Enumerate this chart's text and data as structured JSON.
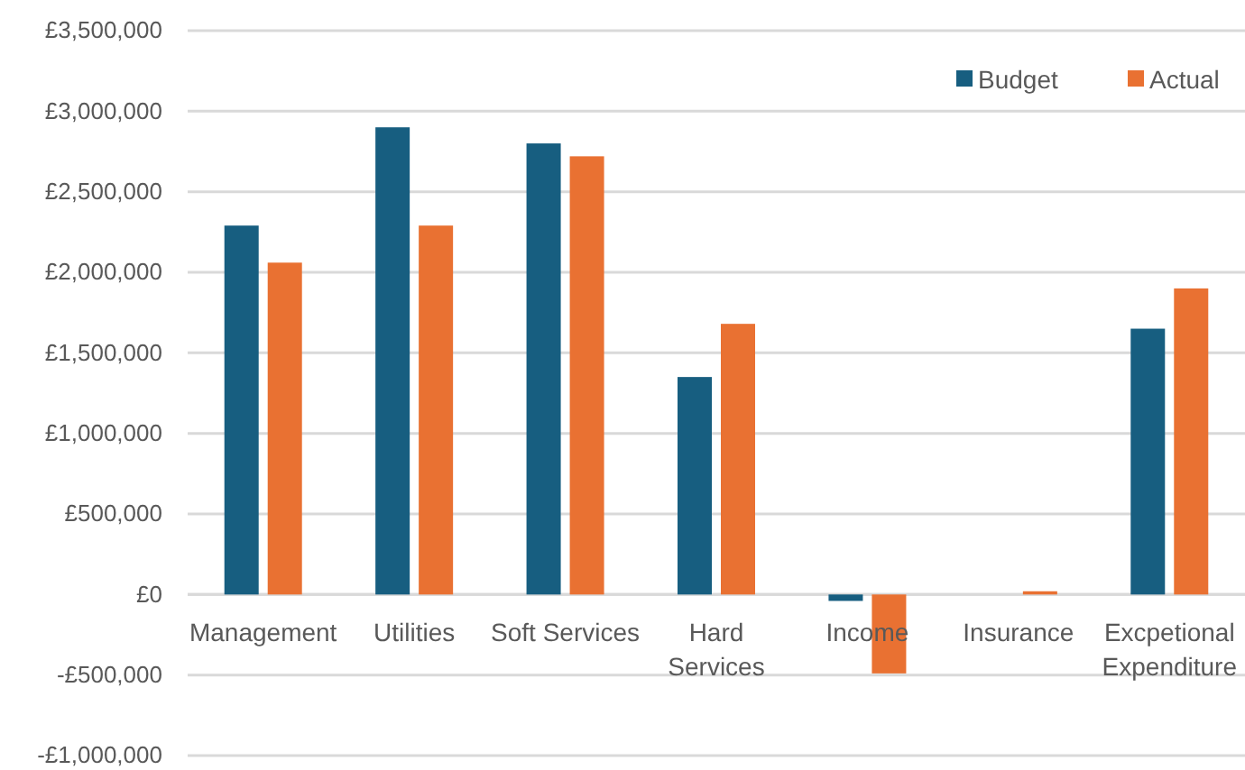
{
  "chart_data": {
    "type": "bar",
    "categories": [
      "Management",
      "Utilities",
      "Soft Services",
      "Hard Services",
      "Income",
      "Insurance",
      "Excpetional Expenditure"
    ],
    "series": [
      {
        "name": "Budget",
        "color": "#175e80",
        "values": [
          2290000,
          2900000,
          2800000,
          1350000,
          -40000,
          0,
          1650000
        ]
      },
      {
        "name": "Actual",
        "color": "#e97132",
        "values": [
          2060000,
          2290000,
          2720000,
          1680000,
          -490000,
          20000,
          1900000
        ]
      }
    ],
    "ylim": [
      -1000000,
      3500000
    ],
    "yticks": [
      {
        "value": -1000000,
        "label": "-£1,000,000"
      },
      {
        "value": -500000,
        "label": "-£500,000"
      },
      {
        "value": 0,
        "label": "£0"
      },
      {
        "value": 500000,
        "label": "£500,000"
      },
      {
        "value": 1000000,
        "label": "£1,000,000"
      },
      {
        "value": 1500000,
        "label": "£1,500,000"
      },
      {
        "value": 2000000,
        "label": "£2,000,000"
      },
      {
        "value": 2500000,
        "label": "£2,500,000"
      },
      {
        "value": 3000000,
        "label": "£3,000,000"
      },
      {
        "value": 3500000,
        "label": "£3,500,000"
      }
    ],
    "grid": "y",
    "legend": "top right"
  }
}
